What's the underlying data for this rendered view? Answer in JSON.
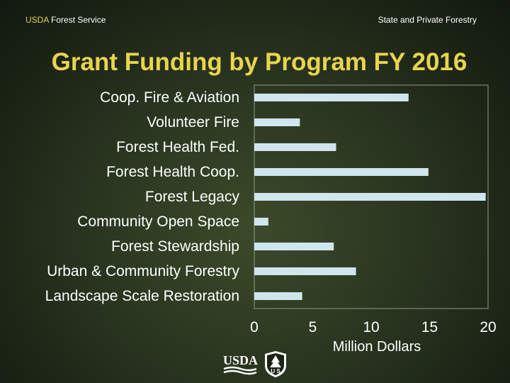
{
  "header": {
    "left_usda": "USDA",
    "left_rest": " Forest Service",
    "right": "State and Private Forestry"
  },
  "logos": {
    "usda_text": "USDA",
    "fs_text": "U S"
  },
  "colors": {
    "title": "#e8d44d",
    "bar": "#cfe6ee",
    "text": "#ffffff"
  },
  "chart_data": {
    "type": "bar",
    "orientation": "horizontal",
    "title": "Grant Funding by Program FY 2016",
    "categories": [
      "Coop. Fire & Aviation",
      "Volunteer Fire",
      "Forest Health Fed.",
      "Forest Health Coop.",
      "Forest Legacy",
      "Community Open Space",
      "Forest Stewardship",
      "Urban & Community Forestry",
      "Landscape Scale Restoration"
    ],
    "values": [
      13.2,
      3.9,
      7.0,
      14.9,
      19.8,
      1.2,
      6.8,
      8.7,
      4.1
    ],
    "xlabel": "Million Dollars",
    "ylabel": "",
    "xlim": [
      0,
      20
    ],
    "xticks": [
      "0",
      "5",
      "10",
      "15",
      "20"
    ],
    "grid": false,
    "legend": "none"
  }
}
